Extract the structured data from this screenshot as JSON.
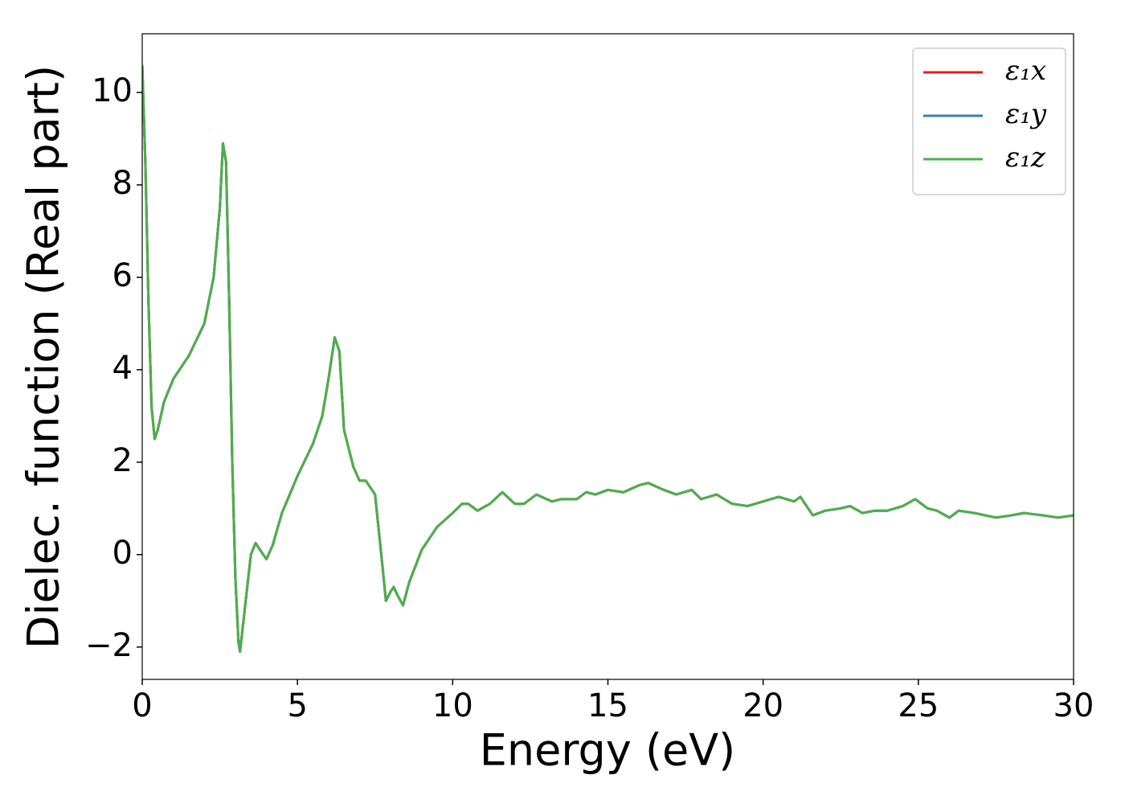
{
  "chart_data": {
    "type": "line",
    "x_label": "Energy (eV)",
    "y_label": "Dielec. function (Real part)",
    "x": [
      0,
      0.1,
      0.2,
      0.3,
      0.4,
      0.5,
      0.7,
      1.0,
      1.5,
      2.0,
      2.3,
      2.5,
      2.6,
      2.7,
      2.8,
      2.9,
      3.0,
      3.1,
      3.15,
      3.3,
      3.5,
      3.65,
      3.8,
      4.0,
      4.2,
      4.5,
      5.0,
      5.5,
      5.8,
      6.0,
      6.2,
      6.35,
      6.5,
      6.8,
      7.0,
      7.2,
      7.5,
      7.7,
      7.85,
      8.0,
      8.1,
      8.2,
      8.4,
      8.6,
      9.0,
      9.5,
      10.0,
      10.3,
      10.5,
      10.8,
      11.2,
      11.6,
      12.0,
      12.3,
      12.7,
      13.2,
      13.5,
      14.0,
      14.3,
      14.6,
      15.0,
      15.5,
      16.0,
      16.3,
      16.8,
      17.2,
      17.7,
      18.0,
      18.5,
      19.0,
      19.5,
      20.0,
      20.5,
      21.0,
      21.2,
      21.6,
      22.0,
      22.5,
      22.8,
      23.2,
      23.6,
      24.0,
      24.5,
      24.9,
      25.3,
      25.6,
      26.0,
      26.3,
      26.8,
      27.5,
      28.0,
      28.4,
      29.0,
      29.5,
      30.0
    ],
    "series": [
      {
        "name": "ε₁x",
        "color": "#e41a1c",
        "values": [
          10.6,
          8.5,
          5.5,
          3.2,
          2.5,
          2.7,
          3.3,
          3.8,
          4.3,
          5.0,
          6.0,
          7.5,
          8.9,
          8.5,
          5.5,
          2.0,
          -0.5,
          -1.9,
          -2.1,
          -1.2,
          0.0,
          0.25,
          0.1,
          -0.1,
          0.2,
          0.9,
          1.7,
          2.4,
          3.0,
          3.8,
          4.7,
          4.4,
          2.7,
          1.9,
          1.6,
          1.6,
          1.3,
          0.0,
          -1.0,
          -0.8,
          -0.7,
          -0.85,
          -1.1,
          -0.6,
          0.1,
          0.6,
          0.9,
          1.1,
          1.1,
          0.95,
          1.1,
          1.35,
          1.1,
          1.1,
          1.3,
          1.15,
          1.2,
          1.2,
          1.35,
          1.3,
          1.4,
          1.35,
          1.5,
          1.55,
          1.4,
          1.3,
          1.4,
          1.2,
          1.3,
          1.1,
          1.05,
          1.15,
          1.25,
          1.15,
          1.25,
          0.85,
          0.95,
          1.0,
          1.05,
          0.9,
          0.95,
          0.95,
          1.05,
          1.2,
          1.0,
          0.95,
          0.8,
          0.95,
          0.9,
          0.8,
          0.85,
          0.9,
          0.85,
          0.8,
          0.85
        ]
      },
      {
        "name": "ε₁y",
        "color": "#377eb8",
        "values": [
          10.6,
          8.5,
          5.5,
          3.2,
          2.5,
          2.7,
          3.3,
          3.8,
          4.3,
          5.0,
          6.0,
          7.5,
          8.9,
          8.5,
          5.5,
          2.0,
          -0.5,
          -1.9,
          -2.1,
          -1.2,
          0.0,
          0.25,
          0.1,
          -0.1,
          0.2,
          0.9,
          1.7,
          2.4,
          3.0,
          3.8,
          4.7,
          4.4,
          2.7,
          1.9,
          1.6,
          1.6,
          1.3,
          0.0,
          -1.0,
          -0.8,
          -0.7,
          -0.85,
          -1.1,
          -0.6,
          0.1,
          0.6,
          0.9,
          1.1,
          1.1,
          0.95,
          1.1,
          1.35,
          1.1,
          1.1,
          1.3,
          1.15,
          1.2,
          1.2,
          1.35,
          1.3,
          1.4,
          1.35,
          1.5,
          1.55,
          1.4,
          1.3,
          1.4,
          1.2,
          1.3,
          1.1,
          1.05,
          1.15,
          1.25,
          1.15,
          1.25,
          0.85,
          0.95,
          1.0,
          1.05,
          0.9,
          0.95,
          0.95,
          1.05,
          1.2,
          1.0,
          0.95,
          0.8,
          0.95,
          0.9,
          0.8,
          0.85,
          0.9,
          0.85,
          0.8,
          0.85
        ]
      },
      {
        "name": "ε₁z",
        "color": "#4daf4a",
        "values": [
          10.6,
          8.5,
          5.5,
          3.2,
          2.5,
          2.7,
          3.3,
          3.8,
          4.3,
          5.0,
          6.0,
          7.5,
          8.9,
          8.5,
          5.5,
          2.0,
          -0.5,
          -1.9,
          -2.1,
          -1.2,
          0.0,
          0.25,
          0.1,
          -0.1,
          0.2,
          0.9,
          1.7,
          2.4,
          3.0,
          3.8,
          4.7,
          4.4,
          2.7,
          1.9,
          1.6,
          1.6,
          1.3,
          0.0,
          -1.0,
          -0.8,
          -0.7,
          -0.85,
          -1.1,
          -0.6,
          0.1,
          0.6,
          0.9,
          1.1,
          1.1,
          0.95,
          1.1,
          1.35,
          1.1,
          1.1,
          1.3,
          1.15,
          1.2,
          1.2,
          1.35,
          1.3,
          1.4,
          1.35,
          1.5,
          1.55,
          1.4,
          1.3,
          1.4,
          1.2,
          1.3,
          1.1,
          1.05,
          1.15,
          1.25,
          1.15,
          1.25,
          0.85,
          0.95,
          1.0,
          1.05,
          0.9,
          0.95,
          0.95,
          1.05,
          1.2,
          1.0,
          0.95,
          0.8,
          0.95,
          0.9,
          0.8,
          0.85,
          0.9,
          0.85,
          0.8,
          0.85
        ]
      }
    ],
    "xlim": [
      0,
      30
    ],
    "xticks": [
      0,
      5,
      10,
      15,
      20,
      25,
      30
    ],
    "ylim": [
      -2.7,
      11.27
    ],
    "yticks": [
      {
        "value": -2,
        "label": "−2"
      },
      0,
      2,
      4,
      6,
      8,
      10
    ],
    "legend": "upper right"
  }
}
